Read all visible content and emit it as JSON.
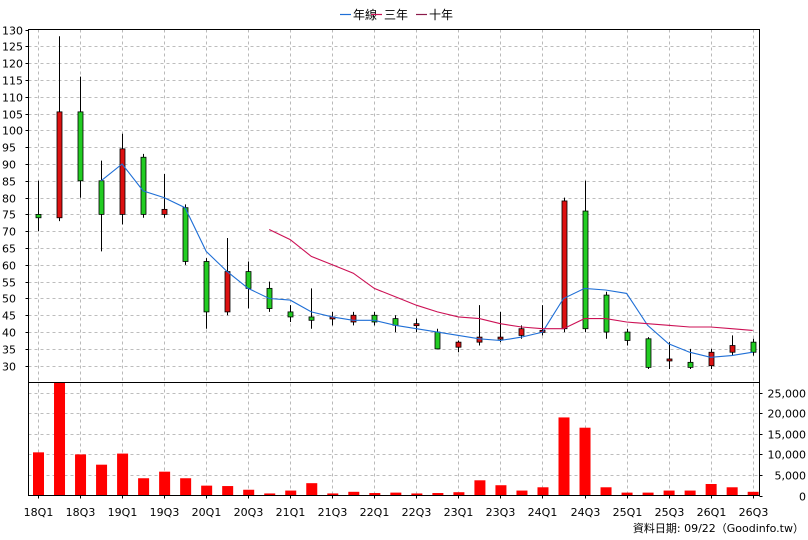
{
  "chart_data": {
    "type": "candlestick",
    "legend": {
      "placement": "top-center",
      "items": [
        {
          "label": "年線",
          "color": "#1f6fd6"
        },
        {
          "label": "三年",
          "color": "#cc1155"
        },
        {
          "label": "十年",
          "color": "#8b1a4a"
        }
      ]
    },
    "price_axis": {
      "ylim": [
        25,
        130
      ],
      "ticks": [
        30,
        35,
        40,
        45,
        50,
        55,
        60,
        65,
        70,
        75,
        80,
        85,
        90,
        95,
        100,
        105,
        110,
        115,
        120,
        125,
        130
      ]
    },
    "volume_axis": {
      "ylim": [
        0,
        27500
      ],
      "ticks": [
        "25,000",
        "20,000",
        "15,000",
        "10,000",
        "5,000",
        "0"
      ],
      "tick_values": [
        25000,
        20000,
        15000,
        10000,
        5000,
        0
      ]
    },
    "x_tick_labels": [
      {
        "i": 0,
        "label": "18Q1"
      },
      {
        "i": 2,
        "label": "18Q3"
      },
      {
        "i": 4,
        "label": "19Q1"
      },
      {
        "i": 6,
        "label": "19Q3"
      },
      {
        "i": 8,
        "label": "20Q1"
      },
      {
        "i": 10,
        "label": "20Q3"
      },
      {
        "i": 12,
        "label": "21Q1"
      },
      {
        "i": 14,
        "label": "21Q3"
      },
      {
        "i": 16,
        "label": "22Q1"
      },
      {
        "i": 18,
        "label": "22Q3"
      },
      {
        "i": 20,
        "label": "23Q1"
      },
      {
        "i": 22,
        "label": "23Q3"
      },
      {
        "i": 24,
        "label": "24Q1"
      },
      {
        "i": 26,
        "label": "24Q3"
      },
      {
        "i": 28,
        "label": "25Q1"
      },
      {
        "i": 30,
        "label": "25Q3"
      },
      {
        "i": 32,
        "label": "26Q1"
      },
      {
        "i": 34,
        "label": "26Q3"
      }
    ],
    "candles": [
      {
        "o": 75,
        "c": 74,
        "h": 85,
        "l": 70
      },
      {
        "o": 74,
        "c": 105.5,
        "h": 128,
        "l": 73
      },
      {
        "o": 105.5,
        "c": 85,
        "h": 116,
        "l": 80
      },
      {
        "o": 85,
        "c": 75,
        "h": 91,
        "l": 64
      },
      {
        "o": 75,
        "c": 94.5,
        "h": 99,
        "l": 72
      },
      {
        "o": 92,
        "c": 75,
        "h": 93,
        "l": 74
      },
      {
        "o": 75,
        "c": 76.5,
        "h": 87,
        "l": 74
      },
      {
        "o": 77,
        "c": 61,
        "h": 78,
        "l": 60
      },
      {
        "o": 61,
        "c": 46,
        "h": 62,
        "l": 41
      },
      {
        "o": 46,
        "c": 58,
        "h": 68,
        "l": 45
      },
      {
        "o": 58,
        "c": 53,
        "h": 61,
        "l": 47
      },
      {
        "o": 53,
        "c": 47,
        "h": 55,
        "l": 46
      },
      {
        "o": 46,
        "c": 44.5,
        "h": 48,
        "l": 43
      },
      {
        "o": 44.5,
        "c": 43.5,
        "h": 53,
        "l": 41
      },
      {
        "o": 44,
        "c": 44.5,
        "h": 46,
        "l": 42
      },
      {
        "o": 43,
        "c": 45,
        "h": 46,
        "l": 42
      },
      {
        "o": 45,
        "c": 43,
        "h": 46,
        "l": 42
      },
      {
        "o": 44,
        "c": 42,
        "h": 45,
        "l": 40
      },
      {
        "o": 42,
        "c": 42.5,
        "h": 44,
        "l": 40
      },
      {
        "o": 40,
        "c": 35,
        "h": 41,
        "l": 35
      },
      {
        "o": 35.5,
        "c": 37,
        "h": 37.5,
        "l": 34
      },
      {
        "o": 37,
        "c": 38.5,
        "h": 48,
        "l": 36
      },
      {
        "o": 38.5,
        "c": 38.5,
        "h": 46,
        "l": 37
      },
      {
        "o": 39,
        "c": 41,
        "h": 42,
        "l": 38
      },
      {
        "o": 40,
        "c": 40.5,
        "h": 48,
        "l": 39
      },
      {
        "o": 41,
        "c": 79,
        "h": 80,
        "l": 40
      },
      {
        "o": 76,
        "c": 41,
        "h": 85,
        "l": 40
      },
      {
        "o": 51,
        "c": 40,
        "h": 52,
        "l": 38
      },
      {
        "o": 40,
        "c": 37.5,
        "h": 41,
        "l": 36
      },
      {
        "o": 38,
        "c": 29.5,
        "h": 38.5,
        "l": 29
      },
      {
        "o": 32,
        "c": 32,
        "h": 37,
        "l": 29
      },
      {
        "o": 31,
        "c": 29.5,
        "h": 35,
        "l": 29
      },
      {
        "o": 30,
        "c": 34,
        "h": 35,
        "l": 29
      },
      {
        "o": 34,
        "c": 36,
        "h": 39,
        "l": 33
      },
      {
        "o": 37,
        "c": 34,
        "h": 38,
        "l": 33
      }
    ],
    "volume": [
      10500,
      27500,
      10000,
      7500,
      10200,
      4200,
      5800,
      4200,
      2400,
      2300,
      1400,
      500,
      1200,
      3000,
      500,
      900,
      600,
      700,
      500,
      600,
      800,
      3700,
      2500,
      1200,
      2000,
      19000,
      16500,
      2000,
      700,
      700,
      1200,
      1200,
      2800,
      2000,
      900
    ],
    "series": [
      {
        "name": "年線",
        "color": "#1f6fd6",
        "values": [
          null,
          null,
          null,
          85,
          90,
          82,
          80,
          77,
          64,
          58,
          53,
          50,
          49.5,
          46,
          44.5,
          43.5,
          43.5,
          42,
          41,
          40,
          39,
          38,
          37.5,
          38.5,
          40,
          50,
          53,
          52.5,
          51.5,
          42,
          36.5,
          34,
          32.5,
          33,
          34
        ]
      },
      {
        "name": "三年",
        "color": "#cc1155",
        "values": [
          null,
          null,
          null,
          null,
          null,
          null,
          null,
          null,
          null,
          null,
          null,
          70.5,
          67.5,
          62.5,
          60,
          57.5,
          53,
          50.5,
          48,
          46,
          44.5,
          44,
          42.5,
          41.5,
          41,
          41,
          44,
          44,
          43,
          42.5,
          42,
          41.5,
          41.5,
          41,
          40.5
        ]
      }
    ]
  },
  "source_label": "資料日期: 09/22（Goodinfo.tw）"
}
